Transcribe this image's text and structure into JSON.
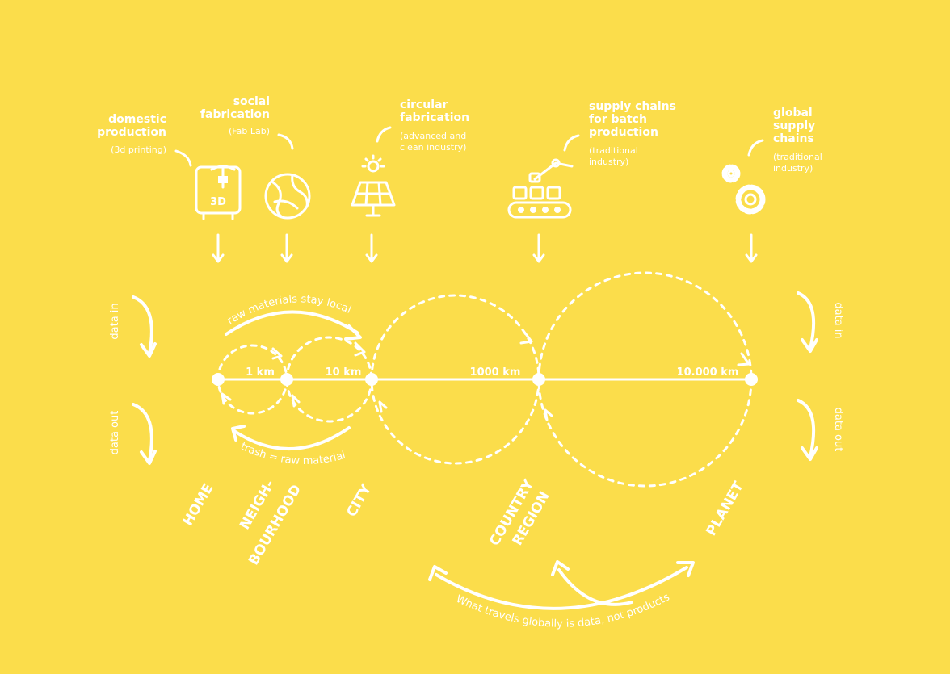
{
  "colors": {
    "background": "#FBDD4B",
    "ink": "#FFFFFF"
  },
  "producers": [
    {
      "icon": "3d-printer-icon",
      "title_lines": [
        "domestic",
        "production"
      ],
      "sub_lines": [
        "(3d printing)"
      ],
      "icon_label": "3D"
    },
    {
      "icon": "fab-lab-globe-icon",
      "title_lines": [
        "social",
        "fabrication"
      ],
      "sub_lines": [
        "(Fab Lab)"
      ]
    },
    {
      "icon": "solar-panel-icon",
      "title_lines": [
        "circular",
        "fabrication"
      ],
      "sub_lines": [
        "(advanced and",
        "clean industry)"
      ]
    },
    {
      "icon": "robot-arm-conveyor-icon",
      "title_lines": [
        "supply chains",
        "for batch",
        "production"
      ],
      "sub_lines": [
        "(traditional",
        "industry)"
      ]
    },
    {
      "icon": "gears-icon",
      "title_lines": [
        "global",
        "supply",
        "chains"
      ],
      "sub_lines": [
        "(traditional",
        "industry)"
      ]
    }
  ],
  "scale": {
    "distances": [
      "1 km",
      "10 km",
      "1000 km",
      "10.000 km"
    ],
    "levels": [
      {
        "lines": [
          "HOME"
        ]
      },
      {
        "lines": [
          "NEIGH-",
          "BOURHOOD"
        ]
      },
      {
        "lines": [
          "CITY"
        ]
      },
      {
        "lines": [
          "COUNTRY",
          "REGION"
        ]
      },
      {
        "lines": [
          "PLANET"
        ]
      }
    ]
  },
  "flows": {
    "raw_materials": "raw materials stay local",
    "trash": "trash = raw material",
    "data_in": "data in",
    "data_out": "data out",
    "global": "What travels globally is data, not products"
  }
}
